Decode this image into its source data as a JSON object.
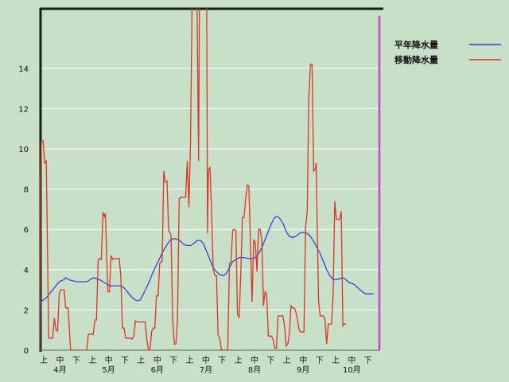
{
  "chart_data": {
    "type": "line",
    "ylim": [
      0,
      17
    ],
    "yticks": [
      0,
      2,
      4,
      6,
      8,
      10,
      12,
      14
    ],
    "xlim": [
      0,
      21
    ],
    "xticks": [
      {
        "label": "上",
        "x": 0.25
      },
      {
        "label": "中",
        "x": 1.25
      },
      {
        "label": "下",
        "x": 2.25
      },
      {
        "label": "上",
        "x": 3.25
      },
      {
        "label": "中",
        "x": 4.25
      },
      {
        "label": "下",
        "x": 5.25
      },
      {
        "label": "上",
        "x": 6.25
      },
      {
        "label": "中",
        "x": 7.25
      },
      {
        "label": "下",
        "x": 8.25
      },
      {
        "label": "上",
        "x": 9.25
      },
      {
        "label": "中",
        "x": 10.25
      },
      {
        "label": "下",
        "x": 11.25
      },
      {
        "label": "上",
        "x": 12.25
      },
      {
        "label": "中",
        "x": 13.25
      },
      {
        "label": "下",
        "x": 14.25
      },
      {
        "label": "上",
        "x": 15.25
      },
      {
        "label": "中",
        "x": 16.25
      },
      {
        "label": "下",
        "x": 17.25
      },
      {
        "label": "上",
        "x": 18.25
      },
      {
        "label": "中",
        "x": 19.25
      },
      {
        "label": "下",
        "x": 20.25
      }
    ],
    "month_labels": [
      {
        "label": "4月",
        "x": 1.25
      },
      {
        "label": "5月",
        "x": 4.25
      },
      {
        "label": "6月",
        "x": 7.25
      },
      {
        "label": "7月",
        "x": 10.25
      },
      {
        "label": "8月",
        "x": 13.25
      },
      {
        "label": "9月",
        "x": 16.25
      },
      {
        "label": "10月",
        "x": 19.25
      }
    ],
    "series": [
      {
        "name": "平年降水量",
        "color": "#3344dd",
        "points": [
          [
            0,
            0
          ],
          [
            0.05,
            2.4
          ],
          [
            0.4,
            2.6
          ],
          [
            0.8,
            3.0
          ],
          [
            1.1,
            3.3
          ],
          [
            1.3,
            3.45
          ],
          [
            1.5,
            3.5
          ],
          [
            1.6,
            3.6
          ],
          [
            1.8,
            3.5
          ],
          [
            2.0,
            3.45
          ],
          [
            2.3,
            3.4
          ],
          [
            2.6,
            3.4
          ],
          [
            2.9,
            3.4
          ],
          [
            3.1,
            3.5
          ],
          [
            3.3,
            3.6
          ],
          [
            3.5,
            3.55
          ],
          [
            3.7,
            3.5
          ],
          [
            3.9,
            3.4
          ],
          [
            4.1,
            3.3
          ],
          [
            4.3,
            3.2
          ],
          [
            4.7,
            3.2
          ],
          [
            5.0,
            3.2
          ],
          [
            5.2,
            3.1
          ],
          [
            5.4,
            2.9
          ],
          [
            5.6,
            2.7
          ],
          [
            5.8,
            2.55
          ],
          [
            6.0,
            2.45
          ],
          [
            6.2,
            2.5
          ],
          [
            6.4,
            2.8
          ],
          [
            6.7,
            3.3
          ],
          [
            7.0,
            3.9
          ],
          [
            7.3,
            4.4
          ],
          [
            7.6,
            4.9
          ],
          [
            7.9,
            5.3
          ],
          [
            8.1,
            5.5
          ],
          [
            8.3,
            5.55
          ],
          [
            8.5,
            5.5
          ],
          [
            8.7,
            5.4
          ],
          [
            8.9,
            5.25
          ],
          [
            9.1,
            5.2
          ],
          [
            9.3,
            5.2
          ],
          [
            9.5,
            5.3
          ],
          [
            9.7,
            5.45
          ],
          [
            9.9,
            5.45
          ],
          [
            10.1,
            5.3
          ],
          [
            10.3,
            4.9
          ],
          [
            10.5,
            4.5
          ],
          [
            10.7,
            4.1
          ],
          [
            10.9,
            3.9
          ],
          [
            11.1,
            3.75
          ],
          [
            11.3,
            3.7
          ],
          [
            11.5,
            3.8
          ],
          [
            11.7,
            4.1
          ],
          [
            11.9,
            4.4
          ],
          [
            12.1,
            4.5
          ],
          [
            12.3,
            4.6
          ],
          [
            12.6,
            4.6
          ],
          [
            12.9,
            4.55
          ],
          [
            13.1,
            4.55
          ],
          [
            13.3,
            4.6
          ],
          [
            13.5,
            4.8
          ],
          [
            13.7,
            5.1
          ],
          [
            13.9,
            5.5
          ],
          [
            14.1,
            5.9
          ],
          [
            14.3,
            6.3
          ],
          [
            14.5,
            6.6
          ],
          [
            14.65,
            6.65
          ],
          [
            14.8,
            6.55
          ],
          [
            15.0,
            6.3
          ],
          [
            15.2,
            5.9
          ],
          [
            15.4,
            5.65
          ],
          [
            15.6,
            5.6
          ],
          [
            15.8,
            5.65
          ],
          [
            16.0,
            5.8
          ],
          [
            16.2,
            5.85
          ],
          [
            16.5,
            5.8
          ],
          [
            16.7,
            5.65
          ],
          [
            16.9,
            5.4
          ],
          [
            17.1,
            5.1
          ],
          [
            17.3,
            4.8
          ],
          [
            17.5,
            4.4
          ],
          [
            17.7,
            4.0
          ],
          [
            17.9,
            3.7
          ],
          [
            18.1,
            3.5
          ],
          [
            18.3,
            3.5
          ],
          [
            18.5,
            3.55
          ],
          [
            18.7,
            3.6
          ],
          [
            18.9,
            3.5
          ],
          [
            19.1,
            3.35
          ],
          [
            19.3,
            3.3
          ],
          [
            19.5,
            3.2
          ],
          [
            19.7,
            3.05
          ],
          [
            19.9,
            2.9
          ],
          [
            20.1,
            2.8
          ],
          [
            20.3,
            2.8
          ],
          [
            20.6,
            2.8
          ]
        ]
      },
      {
        "name": "移動降水量",
        "color": "#dd3322",
        "points": [
          [
            0,
            0
          ],
          [
            0.05,
            8.3
          ],
          [
            0.1,
            10.4
          ],
          [
            0.2,
            10.4
          ],
          [
            0.3,
            9.3
          ],
          [
            0.4,
            9.4
          ],
          [
            0.5,
            3.6
          ],
          [
            0.55,
            0.6
          ],
          [
            0.7,
            0.6
          ],
          [
            0.8,
            0.6
          ],
          [
            0.9,
            1.6
          ],
          [
            1.0,
            1.0
          ],
          [
            1.1,
            0.95
          ],
          [
            1.2,
            2.8
          ],
          [
            1.3,
            3.0
          ],
          [
            1.5,
            3.0
          ],
          [
            1.6,
            2.1
          ],
          [
            1.75,
            2.1
          ],
          [
            1.9,
            0.05
          ],
          [
            2.0,
            0
          ],
          [
            2.9,
            0
          ],
          [
            3.0,
            0.8
          ],
          [
            3.3,
            0.8
          ],
          [
            3.4,
            1.5
          ],
          [
            3.5,
            1.5
          ],
          [
            3.6,
            4.5
          ],
          [
            3.7,
            4.55
          ],
          [
            3.8,
            4.5
          ],
          [
            3.9,
            6.85
          ],
          [
            4.0,
            6.6
          ],
          [
            4.05,
            6.8
          ],
          [
            4.2,
            2.9
          ],
          [
            4.3,
            2.9
          ],
          [
            4.4,
            4.7
          ],
          [
            4.5,
            4.5
          ],
          [
            4.6,
            4.55
          ],
          [
            4.9,
            4.55
          ],
          [
            5.0,
            3.7
          ],
          [
            5.1,
            1.1
          ],
          [
            5.2,
            1.1
          ],
          [
            5.3,
            0.6
          ],
          [
            5.5,
            0.6
          ],
          [
            5.6,
            0.6
          ],
          [
            5.7,
            0.55
          ],
          [
            5.8,
            0.7
          ],
          [
            5.9,
            1.45
          ],
          [
            6.0,
            1.4
          ],
          [
            6.5,
            1.4
          ],
          [
            6.6,
            0.6
          ],
          [
            6.7,
            0
          ],
          [
            6.8,
            0
          ],
          [
            6.9,
            0.9
          ],
          [
            7.0,
            1.1
          ],
          [
            7.1,
            1.1
          ],
          [
            7.2,
            2.7
          ],
          [
            7.3,
            2.7
          ],
          [
            7.4,
            4.3
          ],
          [
            7.5,
            4.4
          ],
          [
            7.55,
            4.4
          ],
          [
            7.65,
            8.9
          ],
          [
            7.75,
            8.35
          ],
          [
            7.85,
            8.4
          ],
          [
            7.95,
            6.0
          ],
          [
            8.1,
            5.7
          ],
          [
            8.2,
            1.5
          ],
          [
            8.3,
            0.3
          ],
          [
            8.4,
            0.3
          ],
          [
            8.5,
            1.5
          ],
          [
            8.6,
            7.5
          ],
          [
            8.7,
            7.6
          ],
          [
            8.8,
            7.6
          ],
          [
            9.0,
            7.6
          ],
          [
            9.1,
            9.4
          ],
          [
            9.2,
            7.1
          ],
          [
            9.3,
            10.2
          ],
          [
            9.4,
            18
          ],
          [
            9.5,
            18
          ],
          [
            9.6,
            18
          ],
          [
            9.7,
            18
          ],
          [
            9.8,
            9.4
          ],
          [
            9.85,
            18
          ],
          [
            9.9,
            18
          ],
          [
            10.0,
            18
          ],
          [
            10.1,
            18
          ],
          [
            10.2,
            18
          ],
          [
            10.3,
            18
          ],
          [
            10.35,
            5.8
          ],
          [
            10.4,
            8.9
          ],
          [
            10.5,
            9.1
          ],
          [
            10.6,
            6.9
          ],
          [
            10.7,
            4.0
          ],
          [
            10.8,
            3.7
          ],
          [
            10.9,
            3.7
          ],
          [
            11.0,
            0.75
          ],
          [
            11.1,
            0.6
          ],
          [
            11.2,
            0.05
          ],
          [
            11.3,
            0
          ],
          [
            11.5,
            0
          ],
          [
            11.6,
            0.05
          ],
          [
            11.7,
            4.3
          ],
          [
            11.8,
            4.4
          ],
          [
            11.9,
            5.95
          ],
          [
            12.0,
            6.0
          ],
          [
            12.1,
            5.95
          ],
          [
            12.2,
            1.8
          ],
          [
            12.3,
            1.6
          ],
          [
            12.4,
            3.7
          ],
          [
            12.5,
            6.6
          ],
          [
            12.6,
            6.6
          ],
          [
            12.7,
            7.5
          ],
          [
            12.8,
            8.2
          ],
          [
            12.9,
            8.15
          ],
          [
            13.0,
            5.2
          ],
          [
            13.1,
            2.4
          ],
          [
            13.2,
            5.5
          ],
          [
            13.3,
            5.3
          ],
          [
            13.4,
            3.9
          ],
          [
            13.5,
            6.0
          ],
          [
            13.6,
            6.0
          ],
          [
            13.7,
            5.4
          ],
          [
            13.8,
            2.2
          ],
          [
            13.9,
            2.9
          ],
          [
            14.0,
            2.8
          ],
          [
            14.1,
            0.7
          ],
          [
            14.2,
            0.7
          ],
          [
            14.3,
            0.7
          ],
          [
            14.4,
            0.5
          ],
          [
            14.5,
            0.1
          ],
          [
            14.6,
            0.1
          ],
          [
            14.7,
            1.7
          ],
          [
            14.8,
            1.7
          ],
          [
            15.0,
            1.7
          ],
          [
            15.1,
            1.2
          ],
          [
            15.2,
            0.2
          ],
          [
            15.3,
            0.3
          ],
          [
            15.4,
            0.8
          ],
          [
            15.5,
            2.2
          ],
          [
            15.6,
            2.1
          ],
          [
            15.7,
            2.1
          ],
          [
            15.8,
            1.9
          ],
          [
            15.9,
            1.5
          ],
          [
            16.0,
            1.0
          ],
          [
            16.1,
            0.9
          ],
          [
            16.3,
            0.9
          ],
          [
            16.4,
            6.1
          ],
          [
            16.5,
            6.9
          ],
          [
            16.6,
            12.6
          ],
          [
            16.7,
            14.2
          ],
          [
            16.8,
            14.2
          ],
          [
            16.9,
            8.9
          ],
          [
            17.0,
            9.0
          ],
          [
            17.05,
            9.3
          ],
          [
            17.2,
            2.4
          ],
          [
            17.3,
            1.7
          ],
          [
            17.4,
            1.7
          ],
          [
            17.5,
            1.7
          ],
          [
            17.6,
            1.5
          ],
          [
            17.7,
            0.3
          ],
          [
            17.8,
            1.3
          ],
          [
            17.9,
            1.3
          ],
          [
            18.0,
            1.3
          ],
          [
            18.1,
            2.8
          ],
          [
            18.2,
            7.4
          ],
          [
            18.3,
            6.5
          ],
          [
            18.4,
            6.5
          ],
          [
            18.5,
            6.5
          ],
          [
            18.6,
            6.9
          ],
          [
            18.7,
            1.2
          ],
          [
            18.8,
            1.3
          ],
          [
            18.9,
            1.3
          ]
        ]
      }
    ]
  }
}
